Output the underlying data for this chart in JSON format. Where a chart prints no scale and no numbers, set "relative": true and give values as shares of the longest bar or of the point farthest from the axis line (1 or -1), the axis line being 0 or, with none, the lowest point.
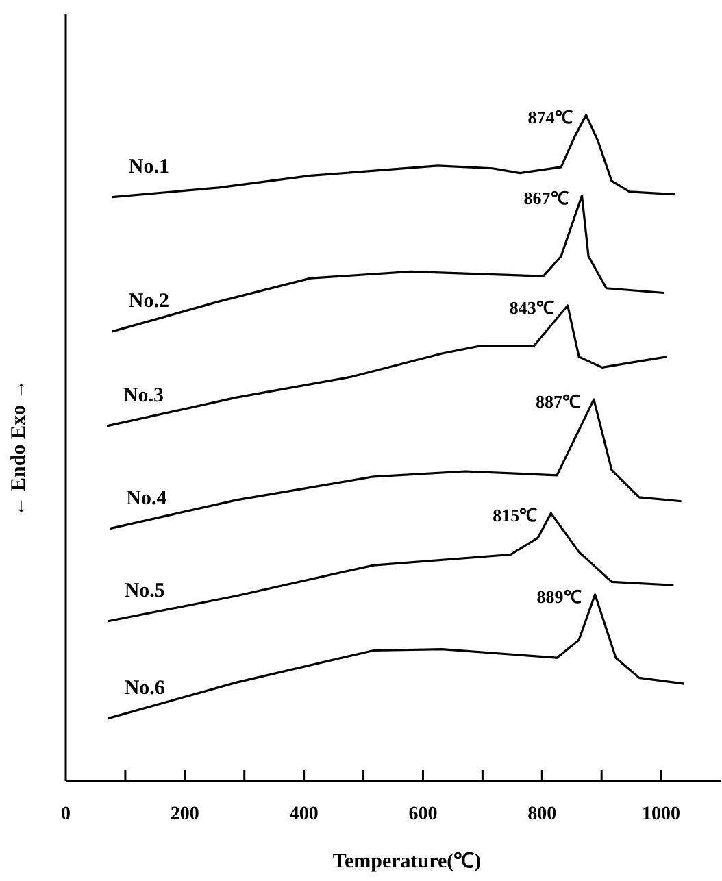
{
  "chart_data": {
    "type": "line",
    "relative": true,
    "xlabel": "Temperature(℃)",
    "ylabel": "← Endo      Exo →",
    "xlim": [
      0,
      1100
    ],
    "xticks": [
      0,
      {
        "value": 100,
        "label": null
      },
      200,
      {
        "value": 300,
        "label": null
      },
      400,
      {
        "value": 500,
        "label": null
      },
      600,
      {
        "value": 700,
        "label": null
      },
      800,
      {
        "value": 900,
        "label": null
      },
      1000
    ],
    "grid": false,
    "legend": false,
    "marker": "none",
    "line_style": "solid",
    "series": [
      {
        "name": "No.1",
        "color": "#000000",
        "x": [
          78,
          257,
          411,
          625,
          717,
          763,
          832,
          855,
          874,
          894,
          917,
          947,
          1023
        ],
        "values": [
          0.877,
          0.891,
          0.909,
          0.924,
          0.92,
          0.913,
          0.922,
          0.968,
          1.0,
          0.961,
          0.901,
          0.885,
          0.881
        ]
      },
      {
        "name": "No.2",
        "color": "#000000",
        "x": [
          78,
          257,
          411,
          579,
          802,
          832,
          867,
          878,
          908,
          1005
        ],
        "values": [
          0.675,
          0.72,
          0.755,
          0.765,
          0.758,
          0.788,
          0.879,
          0.788,
          0.74,
          0.733
        ]
      },
      {
        "name": "No.3",
        "color": "#000000",
        "x": [
          69,
          287,
          480,
          632,
          694,
          786,
          843,
          862,
          901,
          947,
          1009
        ],
        "values": [
          0.533,
          0.576,
          0.607,
          0.642,
          0.653,
          0.653,
          0.714,
          0.637,
          0.621,
          0.628,
          0.637
        ]
      },
      {
        "name": "No.4",
        "color": "#000000",
        "x": [
          74,
          287,
          517,
          671,
          825,
          887,
          917,
          963,
          1034
        ],
        "values": [
          0.379,
          0.422,
          0.457,
          0.465,
          0.459,
          0.573,
          0.467,
          0.426,
          0.42
        ]
      },
      {
        "name": "No.5",
        "color": "#000000",
        "x": [
          71,
          287,
          517,
          747,
          793,
          815,
          862,
          917,
          1021
        ],
        "values": [
          0.24,
          0.278,
          0.324,
          0.34,
          0.365,
          0.402,
          0.344,
          0.299,
          0.294
        ]
      },
      {
        "name": "No.6",
        "color": "#000000",
        "x": [
          71,
          287,
          517,
          632,
          825,
          862,
          889,
          924,
          963,
          1039
        ],
        "values": [
          0.094,
          0.148,
          0.196,
          0.198,
          0.185,
          0.212,
          0.28,
          0.185,
          0.155,
          0.146
        ]
      }
    ],
    "annotations": [
      {
        "text": "874℃",
        "x": 874,
        "y": 1.0
      },
      {
        "text": "867℃",
        "x": 867,
        "y": 0.879
      },
      {
        "text": "843℃",
        "x": 843,
        "y": 0.714
      },
      {
        "text": "887℃",
        "x": 887,
        "y": 0.573
      },
      {
        "text": "815℃",
        "x": 815,
        "y": 0.402
      },
      {
        "text": "889℃",
        "x": 889,
        "y": 0.28
      }
    ]
  }
}
